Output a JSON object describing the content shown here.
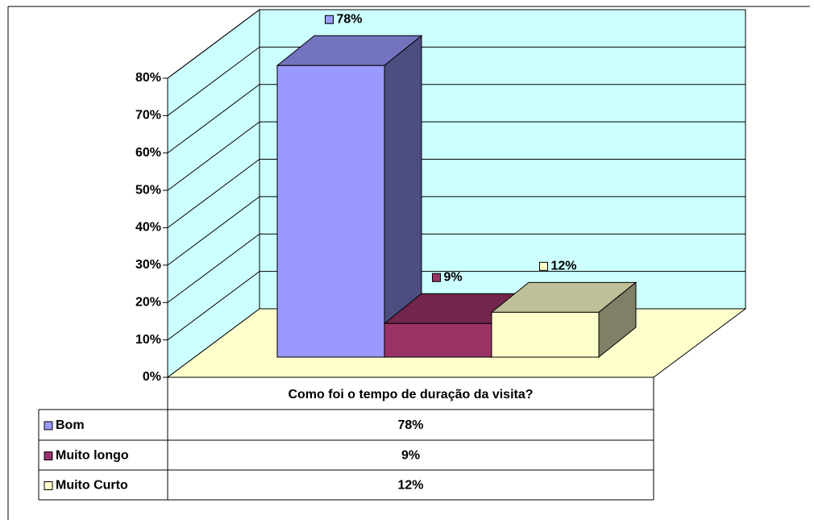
{
  "chart_data": {
    "type": "bar3d",
    "categories": [
      "Como foi o tempo de duração da visita?"
    ],
    "series": [
      {
        "name": "Bom",
        "color": "#9999ff",
        "values": [
          78
        ],
        "value_labels": [
          "78%"
        ]
      },
      {
        "name": "Muito longo",
        "color": "#993366",
        "values": [
          9
        ],
        "value_labels": [
          "9%"
        ]
      },
      {
        "name": "Muito Curto",
        "color": "#ffffcc",
        "values": [
          12
        ],
        "value_labels": [
          "12%"
        ]
      }
    ],
    "ylim": [
      0,
      80
    ],
    "yticks": [
      {
        "value": 0,
        "label": "0%"
      },
      {
        "value": 10,
        "label": "10%"
      },
      {
        "value": 20,
        "label": "20%"
      },
      {
        "value": 30,
        "label": "30%"
      },
      {
        "value": 40,
        "label": "40%"
      },
      {
        "value": 50,
        "label": "50%"
      },
      {
        "value": 60,
        "label": "60%"
      },
      {
        "value": 70,
        "label": "70%"
      },
      {
        "value": 80,
        "label": "80%"
      }
    ],
    "grid": true,
    "legend": "table"
  }
}
